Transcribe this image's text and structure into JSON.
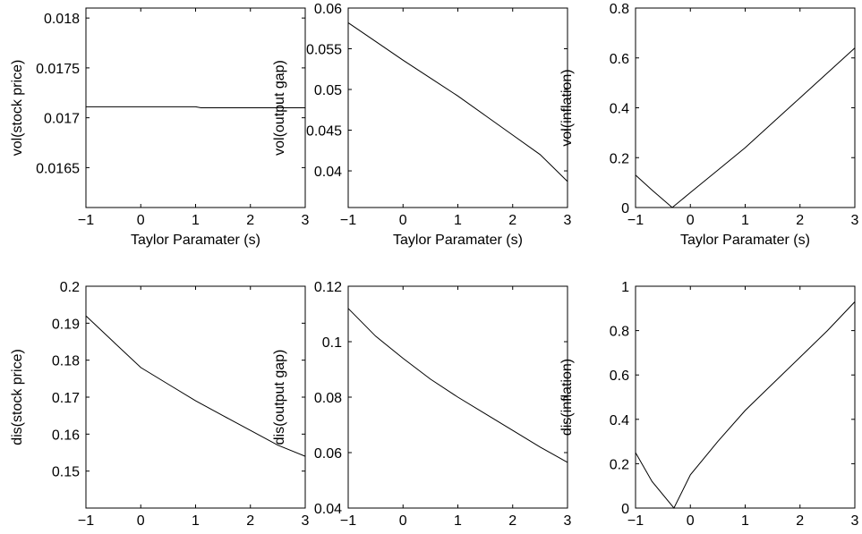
{
  "chart_data": [
    {
      "type": "line",
      "xlabel": "Taylor Paramater (s)",
      "ylabel": "vol(stock price)",
      "xlim": [
        -1,
        3
      ],
      "ylim": [
        0.0161,
        0.0181
      ],
      "xticks": [
        -1,
        0,
        1,
        2,
        3
      ],
      "xtick_labels": [
        "−1",
        "0",
        "1",
        "2",
        "3"
      ],
      "yticks": [
        0.0165,
        0.017,
        0.0175,
        0.018
      ],
      "ytick_labels": [
        "0.0165",
        "0.017",
        "0.0175",
        "0.018"
      ],
      "grid": false,
      "series": [
        {
          "x": [
            -1,
            1.0,
            1.1,
            3
          ],
          "y": [
            0.01711,
            0.01711,
            0.0171,
            0.0171
          ]
        }
      ]
    },
    {
      "type": "line",
      "xlabel": "Taylor Paramater (s)",
      "ylabel": "vol(output gap)",
      "xlim": [
        -1,
        3
      ],
      "ylim": [
        0.0355,
        0.06
      ],
      "xticks": [
        -1,
        0,
        1,
        2,
        3
      ],
      "xtick_labels": [
        "−1",
        "0",
        "1",
        "2",
        "3"
      ],
      "yticks": [
        0.04,
        0.045,
        0.05,
        0.055,
        0.06
      ],
      "ytick_labels": [
        "0.04",
        "0.045",
        "0.05",
        "0.055",
        "0.06"
      ],
      "grid": false,
      "series": [
        {
          "x": [
            -1,
            -0.5,
            0,
            0.5,
            1,
            1.5,
            2,
            2.5,
            3
          ],
          "y": [
            0.0582,
            0.0559,
            0.0536,
            0.0514,
            0.0492,
            0.0468,
            0.0444,
            0.042,
            0.0387
          ]
        }
      ]
    },
    {
      "type": "line",
      "xlabel": "Taylor Paramater (s)",
      "ylabel": "vol(inflation)",
      "xlim": [
        -1,
        3
      ],
      "ylim": [
        0,
        0.8
      ],
      "xticks": [
        -1,
        0,
        1,
        2,
        3
      ],
      "xtick_labels": [
        "−1",
        "0",
        "1",
        "2",
        "3"
      ],
      "yticks": [
        0,
        0.2,
        0.4,
        0.6,
        0.8
      ],
      "ytick_labels": [
        "0",
        "0.2",
        "0.4",
        "0.6",
        "0.8"
      ],
      "grid": false,
      "series": [
        {
          "x": [
            -1,
            -0.7,
            -0.33,
            0,
            0.5,
            1,
            1.5,
            2,
            2.5,
            3
          ],
          "y": [
            0.13,
            0.07,
            0.0,
            0.06,
            0.15,
            0.24,
            0.34,
            0.44,
            0.54,
            0.64
          ]
        }
      ]
    },
    {
      "type": "line",
      "xlabel": "Taylor Paramater (s)",
      "ylabel": "dis(stock price)",
      "xlim": [
        -1,
        3
      ],
      "ylim": [
        0.14,
        0.2
      ],
      "xticks": [
        -1,
        0,
        1,
        2,
        3
      ],
      "xtick_labels": [
        "−1",
        "0",
        "1",
        "2",
        "3"
      ],
      "yticks": [
        0.15,
        0.16,
        0.17,
        0.18,
        0.19,
        0.2
      ],
      "ytick_labels": [
        "0.15",
        "0.16",
        "0.17",
        "0.18",
        "0.19",
        "0.2"
      ],
      "grid": false,
      "series": [
        {
          "x": [
            -1,
            -0.5,
            0,
            0.5,
            1,
            1.5,
            2,
            2.5,
            3
          ],
          "y": [
            0.192,
            0.185,
            0.178,
            0.1735,
            0.169,
            0.165,
            0.161,
            0.157,
            0.154
          ]
        }
      ]
    },
    {
      "type": "line",
      "xlabel": "Taylor Paramater (s)",
      "ylabel": "dis(output gap)",
      "xlim": [
        -1,
        3
      ],
      "ylim": [
        0.04,
        0.12
      ],
      "xticks": [
        -1,
        0,
        1,
        2,
        3
      ],
      "xtick_labels": [
        "−1",
        "0",
        "1",
        "2",
        "3"
      ],
      "yticks": [
        0.04,
        0.06,
        0.08,
        0.1,
        0.12
      ],
      "ytick_labels": [
        "0.04",
        "0.06",
        "0.08",
        "0.1",
        "0.12"
      ],
      "grid": false,
      "series": [
        {
          "x": [
            -1,
            -0.5,
            0,
            0.5,
            1,
            1.5,
            2,
            2.5,
            3
          ],
          "y": [
            0.112,
            0.102,
            0.094,
            0.0865,
            0.08,
            0.074,
            0.068,
            0.062,
            0.0565
          ]
        }
      ]
    },
    {
      "type": "line",
      "xlabel": "Taylor Paramater (s)",
      "ylabel": "dis(inflation)",
      "xlim": [
        -1,
        3
      ],
      "ylim": [
        0,
        1
      ],
      "xticks": [
        -1,
        0,
        1,
        2,
        3
      ],
      "xtick_labels": [
        "−1",
        "0",
        "1",
        "2",
        "3"
      ],
      "yticks": [
        0,
        0.2,
        0.4,
        0.6,
        0.8,
        1
      ],
      "ytick_labels": [
        "0",
        "0.2",
        "0.4",
        "0.6",
        "0.8",
        "1"
      ],
      "grid": false,
      "series": [
        {
          "x": [
            -1,
            -0.7,
            -0.3,
            0,
            0.5,
            1,
            1.5,
            2,
            2.5,
            3
          ],
          "y": [
            0.25,
            0.12,
            0.0,
            0.15,
            0.3,
            0.44,
            0.56,
            0.68,
            0.8,
            0.93
          ]
        }
      ]
    }
  ]
}
